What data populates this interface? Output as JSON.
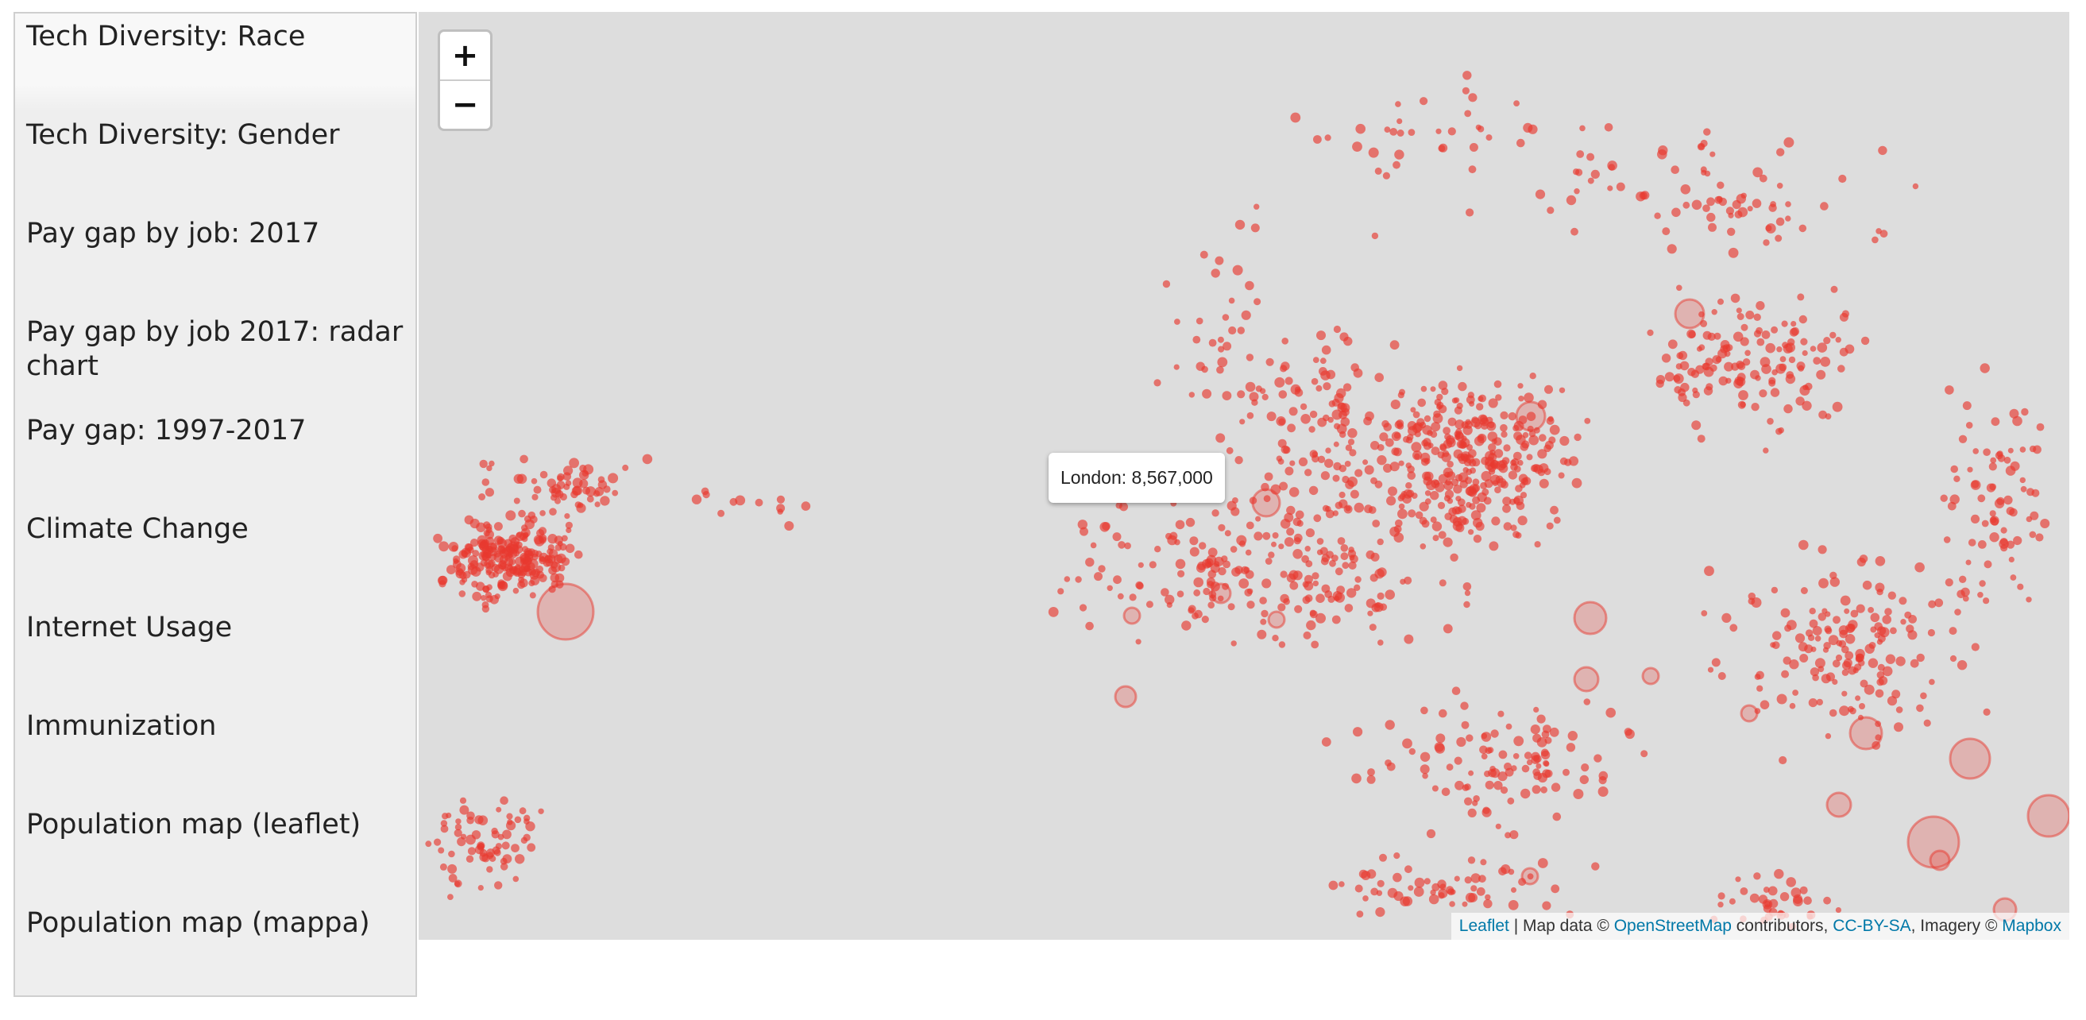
{
  "sidebar": {
    "items": [
      {
        "label": "Tech Diversity: Race",
        "active": true
      },
      {
        "label": "Tech Diversity: Gender"
      },
      {
        "label": "Pay gap by job: 2017"
      },
      {
        "label": "Pay gap by job 2017: radar chart"
      },
      {
        "label": "Pay gap: 1997-2017"
      },
      {
        "label": "Climate Change"
      },
      {
        "label": "Internet Usage"
      },
      {
        "label": "Immunization"
      },
      {
        "label": "Population map (leaflet)"
      },
      {
        "label": "Population map (mappa)"
      }
    ]
  },
  "map": {
    "zoom_in_label": "+",
    "zoom_out_label": "−",
    "tooltip": "London: 8,567,000",
    "attribution": {
      "leaflet": "Leaflet",
      "sep1": " | Map data © ",
      "osm": "OpenStreetMap",
      "sep2": " contributors, ",
      "license": "CC-BY-SA",
      "sep3": ", Imagery © ",
      "mapbox": "Mapbox"
    },
    "colors": {
      "background": "#dddddd",
      "marker": "#e8392f",
      "link": "#0078a8"
    }
  }
}
